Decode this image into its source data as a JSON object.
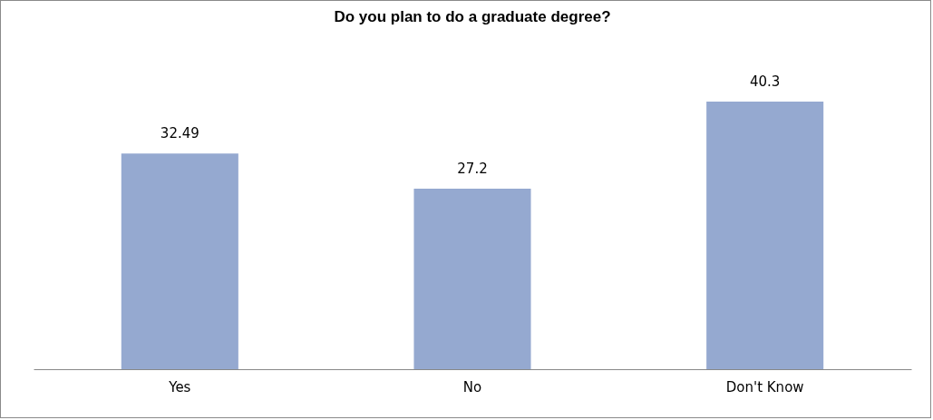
{
  "chart_data": {
    "type": "bar",
    "title": "Do you plan to do a graduate degree?",
    "categories": [
      "Yes",
      "No",
      "Don't Know"
    ],
    "values": [
      32.49,
      27.2,
      40.3
    ],
    "color": "#95a9d0",
    "data_labels": true
  }
}
